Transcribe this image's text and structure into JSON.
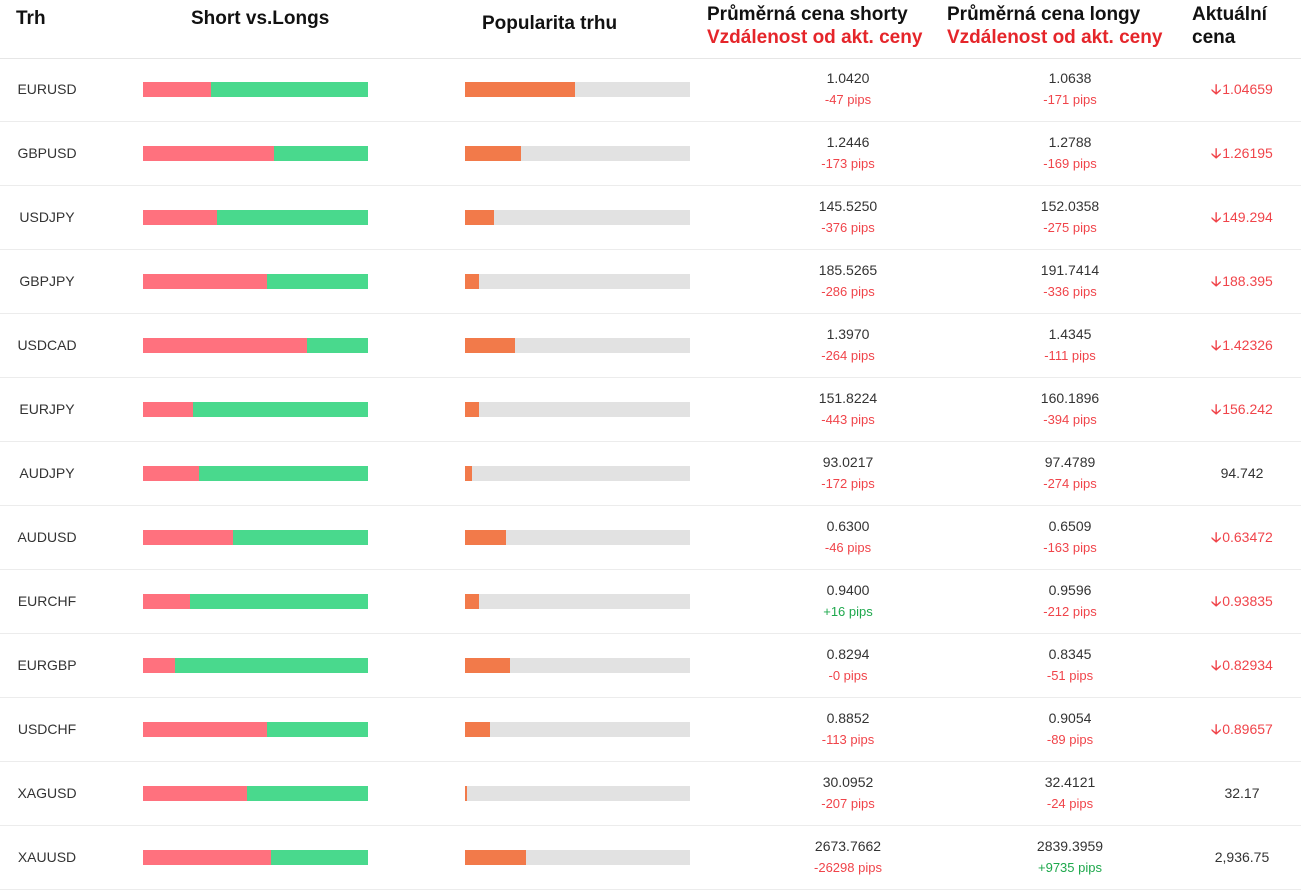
{
  "header": {
    "trh": "Trh",
    "short_vs_longs": "Short vs.Longs",
    "popularita": "Popularita trhu",
    "avg_short": "Průměrná cena shorty",
    "avg_long": "Průměrná cena longy",
    "distance": "Vzdálenost od akt. ceny",
    "current_l1": "Aktuální",
    "current_l2": "cena"
  },
  "colors": {
    "short": "#ff717e",
    "long": "#49d98d",
    "popularity": "#f27a4a",
    "track": "#e2e2e2",
    "negative": "#f0444a",
    "positive": "#1ea84c"
  },
  "rows": [
    {
      "symbol": "EURUSD",
      "short_pct": 30,
      "popularity_pct": 49,
      "short_price": "1.0420",
      "short_pips": "-47 pips",
      "short_pips_positive": false,
      "long_price": "1.0638",
      "long_pips": "-171 pips",
      "long_pips_positive": false,
      "current": "1.04659",
      "trend": "down"
    },
    {
      "symbol": "GBPUSD",
      "short_pct": 58,
      "popularity_pct": 25,
      "short_price": "1.2446",
      "short_pips": "-173 pips",
      "short_pips_positive": false,
      "long_price": "1.2788",
      "long_pips": "-169 pips",
      "long_pips_positive": false,
      "current": "1.26195",
      "trend": "down"
    },
    {
      "symbol": "USDJPY",
      "short_pct": 33,
      "popularity_pct": 13,
      "short_price": "145.5250",
      "short_pips": "-376 pips",
      "short_pips_positive": false,
      "long_price": "152.0358",
      "long_pips": "-275 pips",
      "long_pips_positive": false,
      "current": "149.294",
      "trend": "down"
    },
    {
      "symbol": "GBPJPY",
      "short_pct": 55,
      "popularity_pct": 6,
      "short_price": "185.5265",
      "short_pips": "-286 pips",
      "short_pips_positive": false,
      "long_price": "191.7414",
      "long_pips": "-336 pips",
      "long_pips_positive": false,
      "current": "188.395",
      "trend": "down"
    },
    {
      "symbol": "USDCAD",
      "short_pct": 73,
      "popularity_pct": 22,
      "short_price": "1.3970",
      "short_pips": "-264 pips",
      "short_pips_positive": false,
      "long_price": "1.4345",
      "long_pips": "-111 pips",
      "long_pips_positive": false,
      "current": "1.42326",
      "trend": "down"
    },
    {
      "symbol": "EURJPY",
      "short_pct": 22,
      "popularity_pct": 6,
      "short_price": "151.8224",
      "short_pips": "-443 pips",
      "short_pips_positive": false,
      "long_price": "160.1896",
      "long_pips": "-394 pips",
      "long_pips_positive": false,
      "current": "156.242",
      "trend": "down"
    },
    {
      "symbol": "AUDJPY",
      "short_pct": 25,
      "popularity_pct": 3,
      "short_price": "93.0217",
      "short_pips": "-172 pips",
      "short_pips_positive": false,
      "long_price": "97.4789",
      "long_pips": "-274 pips",
      "long_pips_positive": false,
      "current": "94.742",
      "trend": "none"
    },
    {
      "symbol": "AUDUSD",
      "short_pct": 40,
      "popularity_pct": 18,
      "short_price": "0.6300",
      "short_pips": "-46 pips",
      "short_pips_positive": false,
      "long_price": "0.6509",
      "long_pips": "-163 pips",
      "long_pips_positive": false,
      "current": "0.63472",
      "trend": "down"
    },
    {
      "symbol": "EURCHF",
      "short_pct": 21,
      "popularity_pct": 6,
      "short_price": "0.9400",
      "short_pips": "+16 pips",
      "short_pips_positive": true,
      "long_price": "0.9596",
      "long_pips": "-212 pips",
      "long_pips_positive": false,
      "current": "0.93835",
      "trend": "down"
    },
    {
      "symbol": "EURGBP",
      "short_pct": 14,
      "popularity_pct": 20,
      "short_price": "0.8294",
      "short_pips": "-0 pips",
      "short_pips_positive": false,
      "long_price": "0.8345",
      "long_pips": "-51 pips",
      "long_pips_positive": false,
      "current": "0.82934",
      "trend": "down"
    },
    {
      "symbol": "USDCHF",
      "short_pct": 55,
      "popularity_pct": 11,
      "short_price": "0.8852",
      "short_pips": "-113 pips",
      "short_pips_positive": false,
      "long_price": "0.9054",
      "long_pips": "-89 pips",
      "long_pips_positive": false,
      "current": "0.89657",
      "trend": "down"
    },
    {
      "symbol": "XAGUSD",
      "short_pct": 46,
      "popularity_pct": 1,
      "short_price": "30.0952",
      "short_pips": "-207 pips",
      "short_pips_positive": false,
      "long_price": "32.4121",
      "long_pips": "-24 pips",
      "long_pips_positive": false,
      "current": "32.17",
      "trend": "none"
    },
    {
      "symbol": "XAUUSD",
      "short_pct": 57,
      "popularity_pct": 27,
      "short_price": "2673.7662",
      "short_pips": "-26298 pips",
      "short_pips_positive": false,
      "long_price": "2839.3959",
      "long_pips": "+9735 pips",
      "long_pips_positive": true,
      "current": "2,936.75",
      "trend": "none"
    }
  ]
}
